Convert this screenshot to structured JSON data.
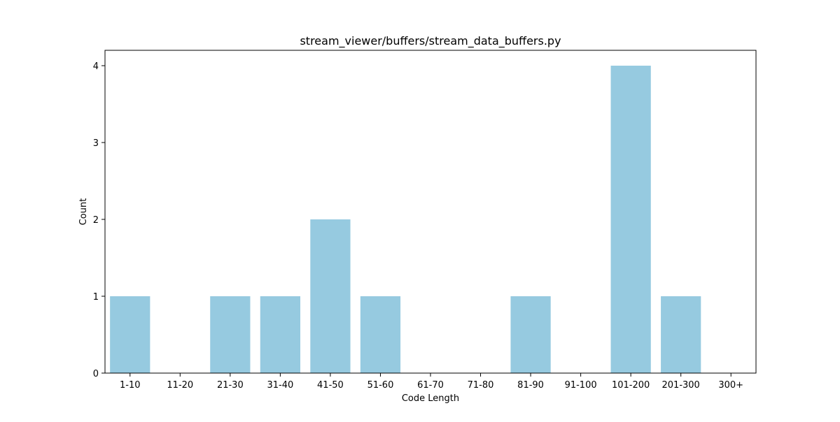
{
  "chart_data": {
    "type": "bar",
    "title": "stream_viewer/buffers/stream_data_buffers.py",
    "xlabel": "Code Length",
    "ylabel": "Count",
    "categories": [
      "1-10",
      "11-20",
      "21-30",
      "31-40",
      "41-50",
      "51-60",
      "61-70",
      "71-80",
      "81-90",
      "91-100",
      "101-200",
      "201-300",
      "300+"
    ],
    "values": [
      1,
      0,
      1,
      1,
      2,
      1,
      0,
      0,
      1,
      0,
      4,
      1,
      0
    ],
    "ylim": [
      0,
      4.2
    ],
    "yticks": [
      0,
      1,
      2,
      3,
      4
    ],
    "grid": false,
    "bar_color": "#96CAE0"
  }
}
